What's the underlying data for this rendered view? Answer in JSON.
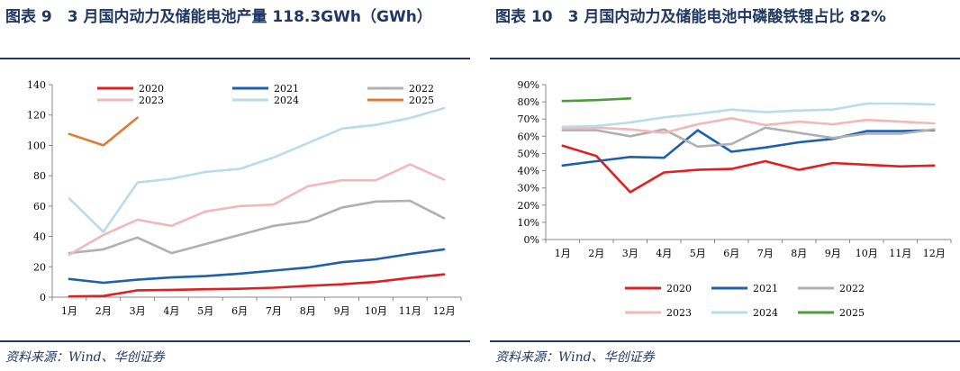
{
  "charts": [
    {
      "title": "图表 9　3 月国内动力及储能电池产量 118.3GWh（GWh）",
      "source": "资料来源：Wind、华创证券"
    },
    {
      "title": "图表 10　3 月国内动力及储能电池中磷酸铁锂占比 82%",
      "source": "资料来源：Wind、华创证券"
    }
  ],
  "chart_data": [
    {
      "type": "line",
      "categories": [
        "1月",
        "2月",
        "3月",
        "4月",
        "5月",
        "6月",
        "7月",
        "8月",
        "9月",
        "10月",
        "11月",
        "12月"
      ],
      "ylim": [
        0,
        140
      ],
      "yticks": [
        0,
        20,
        40,
        60,
        80,
        100,
        120,
        140
      ],
      "ytick_labels": [
        "0",
        "20",
        "40",
        "60",
        "80",
        "100",
        "120",
        "140"
      ],
      "grid": false,
      "legend": "top",
      "series": [
        {
          "name": "2020",
          "color": "#e02020",
          "values": [
            0.5,
            0.8,
            4.5,
            4.8,
            5.2,
            5.5,
            6.2,
            7.5,
            8.5,
            10.0,
            12.7,
            15.0
          ]
        },
        {
          "name": "2021",
          "color": "#1f5fb0",
          "values": [
            12.0,
            9.5,
            11.5,
            13.0,
            13.9,
            15.5,
            17.5,
            19.5,
            23.0,
            25.0,
            28.5,
            31.5
          ]
        },
        {
          "name": "2022",
          "color": "#b0b0b0",
          "values": [
            29.0,
            31.5,
            39.3,
            29.0,
            35.0,
            41.0,
            47.0,
            50.0,
            59.0,
            63.0,
            63.5,
            52.0
          ]
        },
        {
          "name": "2023",
          "color": "#f2b8b8",
          "values": [
            28.0,
            41.0,
            51.0,
            47.0,
            56.5,
            60.0,
            61.0,
            73.0,
            77.0,
            77.0,
            87.5,
            77.5
          ]
        },
        {
          "name": "2024",
          "color": "#b8dcea",
          "values": [
            65.0,
            43.0,
            75.5,
            78.0,
            82.5,
            84.5,
            92.0,
            101.5,
            111.0,
            113.5,
            118.0,
            124.5
          ]
        },
        {
          "name": "2025",
          "color": "#e07b30",
          "values": [
            107.5,
            100.0,
            118.3,
            null,
            null,
            null,
            null,
            null,
            null,
            null,
            null,
            null
          ]
        }
      ]
    },
    {
      "type": "line",
      "categories": [
        "1月",
        "2月",
        "3月",
        "4月",
        "5月",
        "6月",
        "7月",
        "8月",
        "9月",
        "10月",
        "11月",
        "12月"
      ],
      "ylim": [
        0,
        90
      ],
      "yticks": [
        0,
        10,
        20,
        30,
        40,
        50,
        60,
        70,
        80,
        90
      ],
      "ytick_labels": [
        "0%",
        "10%",
        "20%",
        "30%",
        "40%",
        "50%",
        "60%",
        "70%",
        "80%",
        "90%"
      ],
      "grid": false,
      "legend": "bottom",
      "series": [
        {
          "name": "2020",
          "color": "#e02020",
          "values": [
            54.5,
            48.5,
            27.5,
            39.0,
            40.5,
            41.0,
            45.5,
            40.5,
            44.5,
            43.5,
            42.5,
            43.0
          ]
        },
        {
          "name": "2021",
          "color": "#1f5fb0",
          "values": [
            43.0,
            45.5,
            48.0,
            47.5,
            63.5,
            51.0,
            53.5,
            56.5,
            58.5,
            63.0,
            63.0,
            63.5
          ]
        },
        {
          "name": "2022",
          "color": "#b0b0b0",
          "values": [
            63.5,
            63.5,
            60.0,
            64.0,
            54.0,
            55.5,
            65.0,
            62.0,
            59.0,
            61.5,
            61.5,
            64.0
          ]
        },
        {
          "name": "2023",
          "color": "#f2b8b8",
          "values": [
            65.0,
            65.0,
            64.0,
            62.0,
            67.0,
            70.5,
            66.5,
            68.5,
            67.0,
            69.5,
            68.5,
            67.5
          ]
        },
        {
          "name": "2024",
          "color": "#b8dcea",
          "values": [
            65.5,
            66.0,
            68.0,
            71.0,
            73.0,
            75.5,
            74.0,
            75.0,
            75.5,
            79.0,
            79.0,
            78.5
          ]
        },
        {
          "name": "2025",
          "color": "#4f9a3f",
          "values": [
            80.5,
            81.0,
            82.0,
            null,
            null,
            null,
            null,
            null,
            null,
            null,
            null,
            null
          ]
        }
      ]
    }
  ]
}
